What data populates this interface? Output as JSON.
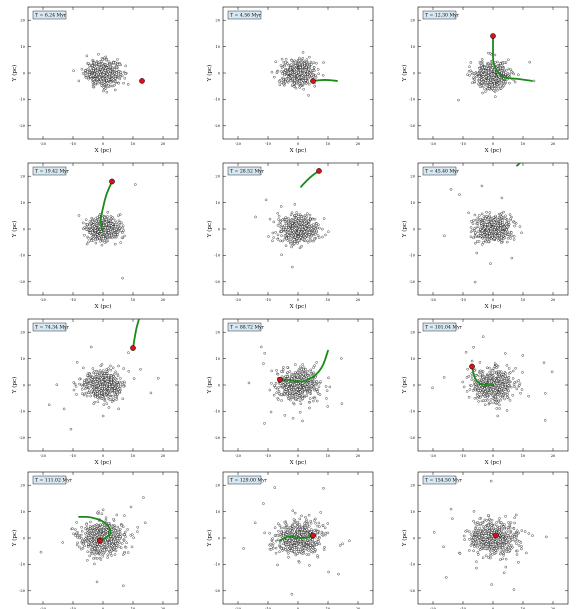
{
  "figure": {
    "columns": 3,
    "rows": 4,
    "xlabel": "X (pc)",
    "ylabel": "Y (pc)",
    "xlim": [
      -25,
      25
    ],
    "ylim": [
      -25,
      25
    ],
    "xticks": [
      -20,
      -10,
      0,
      10,
      20
    ],
    "yticks": [
      -20,
      -10,
      0,
      10,
      20
    ],
    "colors": {
      "stars_fill": "#ffffff",
      "stars_stroke": "#000000",
      "track": "#1a8a1a",
      "perturber": "#d8121a",
      "label_box": "#d6e9f2"
    }
  },
  "chart_data": [
    {
      "type": "scatter",
      "time_label": "T = 6.24 Myr",
      "xlabel": "X (pc)",
      "ylabel": "Y (pc)",
      "xlim": [
        -25,
        25
      ],
      "ylim": [
        -25,
        25
      ],
      "cluster_center": [
        0,
        0
      ],
      "cluster_sigma": 2.8,
      "halo_stars": 0,
      "perturber": [
        13,
        -3
      ],
      "track": []
    },
    {
      "type": "scatter",
      "time_label": "T = 4.56 Myr",
      "xlabel": "X (pc)",
      "ylabel": "Y (pc)",
      "xlim": [
        -25,
        25
      ],
      "ylim": [
        -25,
        25
      ],
      "cluster_center": [
        0,
        0
      ],
      "cluster_sigma": 2.8,
      "halo_stars": 0,
      "perturber": [
        5,
        -3
      ],
      "track": [
        [
          13,
          -3
        ],
        [
          9,
          -2.5
        ],
        [
          5,
          -3
        ]
      ]
    },
    {
      "type": "scatter",
      "time_label": "T = 12.30 Myr",
      "xlabel": "X (pc)",
      "ylabel": "Y (pc)",
      "xlim": [
        -25,
        25
      ],
      "ylim": [
        -25,
        25
      ],
      "cluster_center": [
        0,
        -1
      ],
      "cluster_sigma": 2.9,
      "halo_stars": 4,
      "perturber": [
        0,
        14
      ],
      "track": [
        [
          13,
          -3
        ],
        [
          7,
          -2
        ],
        [
          3,
          -2
        ],
        [
          0,
          3
        ],
        [
          0,
          9
        ],
        [
          0,
          14
        ]
      ]
    },
    {
      "type": "scatter",
      "time_label": "T = 19.42 Myr",
      "xlabel": "X (pc)",
      "ylabel": "Y (pc)",
      "xlim": [
        -25,
        25
      ],
      "ylim": [
        -25,
        25
      ],
      "cluster_center": [
        0,
        0
      ],
      "cluster_sigma": 2.8,
      "halo_stars": 3,
      "perturber": [
        3,
        18
      ],
      "track": [
        [
          0,
          -1
        ],
        [
          -1,
          3
        ],
        [
          0,
          8
        ],
        [
          1,
          13
        ],
        [
          3,
          18
        ]
      ]
    },
    {
      "type": "scatter",
      "time_label": "T = 28.52 Myr",
      "xlabel": "X (pc)",
      "ylabel": "Y (pc)",
      "xlim": [
        -25,
        25
      ],
      "ylim": [
        -25,
        25
      ],
      "cluster_center": [
        0,
        0
      ],
      "cluster_sigma": 3.0,
      "halo_stars": 8,
      "perturber": [
        7,
        22
      ],
      "track": [
        [
          1,
          16
        ],
        [
          3,
          18.5
        ],
        [
          5,
          20.5
        ],
        [
          7,
          22
        ]
      ]
    },
    {
      "type": "scatter",
      "time_label": "T = 45.40 Myr",
      "xlabel": "X (pc)",
      "ylabel": "Y (pc)",
      "xlim": [
        -25,
        25
      ],
      "ylim": [
        -25,
        25
      ],
      "cluster_center": [
        0,
        0
      ],
      "cluster_sigma": 3.0,
      "halo_stars": 10,
      "perturber": null,
      "track": [
        [
          8,
          24
        ],
        [
          9,
          25
        ]
      ]
    },
    {
      "type": "scatter",
      "time_label": "T = 74.34 Myr",
      "xlabel": "X (pc)",
      "ylabel": "Y (pc)",
      "xlim": [
        -25,
        25
      ],
      "ylim": [
        -25,
        25
      ],
      "cluster_center": [
        0,
        0
      ],
      "cluster_sigma": 3.3,
      "halo_stars": 14,
      "perturber": [
        10,
        14
      ],
      "track": [
        [
          12,
          25
        ],
        [
          11,
          21
        ],
        [
          10,
          14
        ]
      ]
    },
    {
      "type": "scatter",
      "time_label": "T = 88.72 Myr",
      "xlabel": "X (pc)",
      "ylabel": "Y (pc)",
      "xlim": [
        -25,
        25
      ],
      "ylim": [
        -25,
        25
      ],
      "cluster_center": [
        0,
        0
      ],
      "cluster_sigma": 3.5,
      "halo_stars": 16,
      "perturber": [
        -6,
        2
      ],
      "track": [
        [
          10,
          13
        ],
        [
          8,
          6
        ],
        [
          4,
          2
        ],
        [
          0,
          1
        ],
        [
          -3,
          2
        ],
        [
          -6,
          2
        ]
      ]
    },
    {
      "type": "scatter",
      "time_label": "T = 101.04 Myr",
      "xlabel": "X (pc)",
      "ylabel": "Y (pc)",
      "xlim": [
        -25,
        25
      ],
      "ylim": [
        -25,
        25
      ],
      "cluster_center": [
        0,
        0
      ],
      "cluster_sigma": 3.5,
      "halo_stars": 16,
      "perturber": [
        -7,
        7
      ],
      "track": [
        [
          0,
          0
        ],
        [
          -4,
          0
        ],
        [
          -6,
          2
        ],
        [
          -7,
          7
        ]
      ]
    },
    {
      "type": "scatter",
      "time_label": "T = 111.02 Myr",
      "xlabel": "X (pc)",
      "ylabel": "Y (pc)",
      "xlim": [
        -25,
        25
      ],
      "ylim": [
        -25,
        25
      ],
      "cluster_center": [
        0,
        0
      ],
      "cluster_sigma": 3.7,
      "halo_stars": 18,
      "perturber": [
        -1,
        -1
      ],
      "track": [
        [
          -8,
          8
        ],
        [
          -4,
          8
        ],
        [
          1,
          6
        ],
        [
          3,
          2
        ],
        [
          1,
          0
        ],
        [
          -1,
          -1
        ]
      ]
    },
    {
      "type": "scatter",
      "time_label": "T = 129.00 Myr",
      "xlabel": "X (pc)",
      "ylabel": "Y (pc)",
      "xlim": [
        -25,
        25
      ],
      "ylim": [
        -25,
        25
      ],
      "cluster_center": [
        0,
        0
      ],
      "cluster_sigma": 3.8,
      "halo_stars": 20,
      "perturber": [
        5,
        1
      ],
      "track": [
        [
          -6,
          -1
        ],
        [
          -3,
          1
        ],
        [
          0,
          0
        ],
        [
          3,
          0
        ],
        [
          5,
          1
        ]
      ]
    },
    {
      "type": "scatter",
      "time_label": "T = 154.50 Myr",
      "xlabel": "X (pc)",
      "ylabel": "Y (pc)",
      "xlim": [
        -25,
        25
      ],
      "ylim": [
        -25,
        25
      ],
      "cluster_center": [
        0,
        0
      ],
      "cluster_sigma": 4.0,
      "halo_stars": 24,
      "perturber": [
        1,
        1
      ],
      "track": []
    }
  ]
}
